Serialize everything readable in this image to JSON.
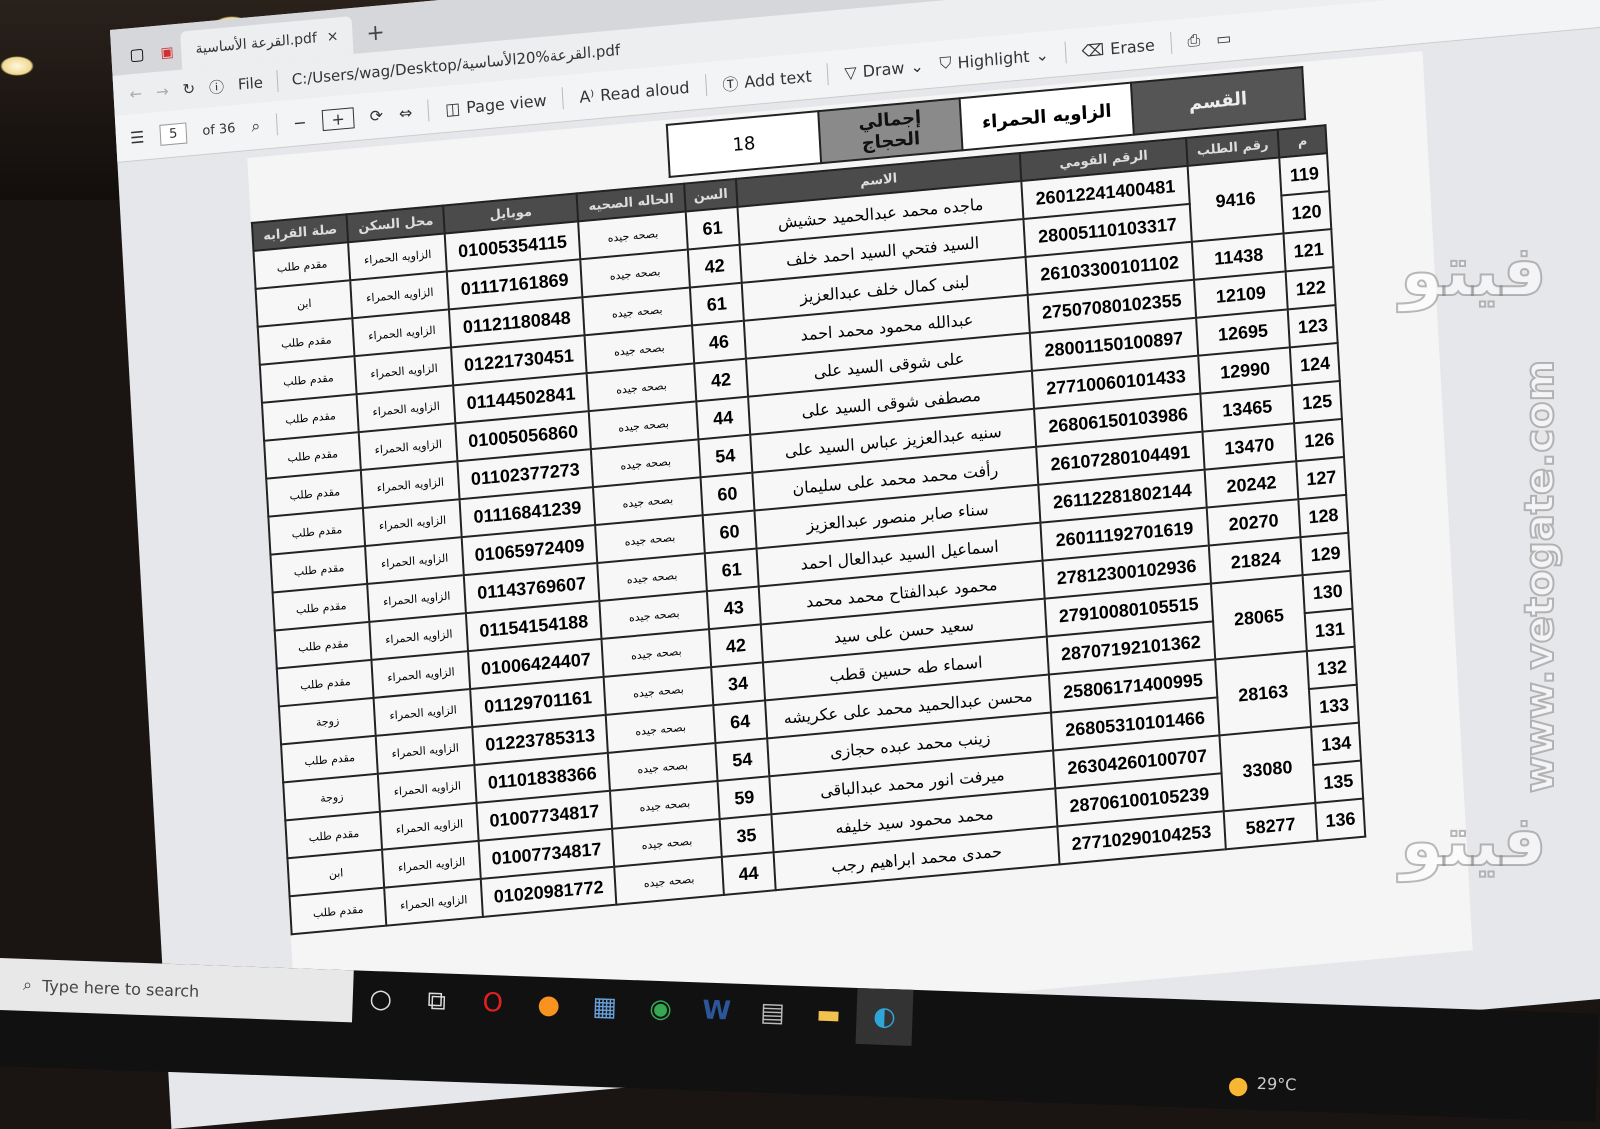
{
  "browser": {
    "tab_title": "القرعة الأساسية.pdf",
    "tab_close": "×",
    "new_tab": "+",
    "address_scheme": "File",
    "address_url": "C:/Users/wag/Desktop/القرعة%20الأساسية.pdf"
  },
  "pdf_toolbar": {
    "page_current": "5",
    "page_total": "of 36",
    "zoom_out": "−",
    "zoom_in": "+",
    "page_view": "Page view",
    "read_aloud": "Read aloud",
    "add_text": "Add text",
    "draw": "Draw",
    "highlight": "Highlight",
    "erase": "Erase"
  },
  "document": {
    "section_label": "القسم",
    "section_value": "الزاويه الحمراء",
    "total_label": "إجمالي الحجاج",
    "total_value": "18",
    "columns": [
      "م",
      "رقم الطلب",
      "الرقم القومي",
      "الاسم",
      "السن",
      "الحاله الصحيه",
      "موبايل",
      "محل السكن",
      "صلة القرابه"
    ],
    "rows": [
      {
        "no": "119",
        "req": "9416",
        "req_span": 2,
        "nid": "26012241400481",
        "name": "ماجده محمد عبدالحميد حشيش",
        "age": "61",
        "health": "بصحه جيده",
        "phone": "01005354115",
        "residence": "الزاويه الحمراء",
        "relation": "مقدم طلب"
      },
      {
        "no": "120",
        "nid": "28005110103317",
        "name": "السيد فتحي السيد احمد خلف",
        "age": "42",
        "health": "بصحه جيده",
        "phone": "01117161869",
        "residence": "الزاويه الحمراء",
        "relation": "ابن"
      },
      {
        "no": "121",
        "req": "11438",
        "req_span": 1,
        "nid": "26103300101102",
        "name": "لبنى كمال خلف عبدالعزيز",
        "age": "61",
        "health": "بصحه جيده",
        "phone": "01121180848",
        "residence": "الزاويه الحمراء",
        "relation": "مقدم طلب"
      },
      {
        "no": "122",
        "req": "12109",
        "req_span": 1,
        "nid": "27507080102355",
        "name": "عبدالله محمود محمد احمد",
        "age": "46",
        "health": "بصحه جيده",
        "phone": "01221730451",
        "residence": "الزاويه الحمراء",
        "relation": "مقدم طلب"
      },
      {
        "no": "123",
        "req": "12695",
        "req_span": 1,
        "nid": "28001150100897",
        "name": "على شوقى السيد على",
        "age": "42",
        "health": "بصحه جيده",
        "phone": "01144502841",
        "residence": "الزاويه الحمراء",
        "relation": "مقدم طلب"
      },
      {
        "no": "124",
        "req": "12990",
        "req_span": 1,
        "nid": "27710060101433",
        "name": "مصطفى شوقى السيد على",
        "age": "44",
        "health": "بصحه جيده",
        "phone": "01005056860",
        "residence": "الزاويه الحمراء",
        "relation": "مقدم طلب"
      },
      {
        "no": "125",
        "req": "13465",
        "req_span": 1,
        "nid": "26806150103986",
        "name": "سنيه عبدالعزيز عباس السيد على",
        "age": "54",
        "health": "بصحه جيده",
        "phone": "01102377273",
        "residence": "الزاويه الحمراء",
        "relation": "مقدم طلب"
      },
      {
        "no": "126",
        "req": "13470",
        "req_span": 1,
        "nid": "26107280104491",
        "name": "رأفت محمد محمد على سليمان",
        "age": "60",
        "health": "بصحه جيده",
        "phone": "01116841239",
        "residence": "الزاويه الحمراء",
        "relation": "مقدم طلب"
      },
      {
        "no": "127",
        "req": "20242",
        "req_span": 1,
        "nid": "26112281802144",
        "name": "سناء صابر منصور عبدالعزيز",
        "age": "60",
        "health": "بصحه جيده",
        "phone": "01065972409",
        "residence": "الزاويه الحمراء",
        "relation": "مقدم طلب"
      },
      {
        "no": "128",
        "req": "20270",
        "req_span": 1,
        "nid": "26011192701619",
        "name": "اسماعيل السيد عبدالعال احمد",
        "age": "61",
        "health": "بصحه جيده",
        "phone": "01143769607",
        "residence": "الزاويه الحمراء",
        "relation": "مقدم طلب"
      },
      {
        "no": "129",
        "req": "21824",
        "req_span": 1,
        "nid": "27812300102936",
        "name": "محمود عبدالفتاح محمد محمد",
        "age": "43",
        "health": "بصحه جيده",
        "phone": "01154154188",
        "residence": "الزاويه الحمراء",
        "relation": "مقدم طلب"
      },
      {
        "no": "130",
        "req": "28065",
        "req_span": 2,
        "nid": "27910080105515",
        "name": "سعيد حسن على سيد",
        "age": "42",
        "health": "بصحه جيده",
        "phone": "01006424407",
        "residence": "الزاويه الحمراء",
        "relation": "مقدم طلب"
      },
      {
        "no": "131",
        "nid": "28707192101362",
        "name": "اسماء طه حسين قطب",
        "age": "34",
        "health": "بصحه جيده",
        "phone": "01129701161",
        "residence": "الزاويه الحمراء",
        "relation": "زوجة"
      },
      {
        "no": "132",
        "req": "28163",
        "req_span": 2,
        "nid": "25806171400995",
        "name": "محسن عبدالحميد محمد على عكريشه",
        "age": "64",
        "health": "بصحه جيده",
        "phone": "01223785313",
        "residence": "الزاويه الحمراء",
        "relation": "مقدم طلب"
      },
      {
        "no": "133",
        "nid": "26805310101466",
        "name": "زينب محمد عبده حجازى",
        "age": "54",
        "health": "بصحه جيده",
        "phone": "01101838366",
        "residence": "الزاويه الحمراء",
        "relation": "زوجة"
      },
      {
        "no": "134",
        "req": "33080",
        "req_span": 2,
        "nid": "26304260100707",
        "name": "ميرفت انور محمد عبدالباقى",
        "age": "59",
        "health": "بصحه جيده",
        "phone": "01007734817",
        "residence": "الزاويه الحمراء",
        "relation": "مقدم طلب"
      },
      {
        "no": "135",
        "nid": "28706100105239",
        "name": "محمد محمود سيد خليفه",
        "age": "35",
        "health": "بصحه جيده",
        "phone": "01007734817",
        "residence": "الزاويه الحمراء",
        "relation": "ابن"
      },
      {
        "no": "136",
        "req": "58277",
        "req_span": 1,
        "nid": "27710290104253",
        "name": "حمدى محمد ابراهيم رجب",
        "age": "44",
        "health": "بصحه جيده",
        "phone": "01020981772",
        "residence": "الزاويه الحمراء",
        "relation": "مقدم طلب"
      }
    ]
  },
  "watermarks": {
    "site": "www.vetogate.com",
    "logo": "فيتو"
  },
  "taskbar": {
    "search_placeholder": "Type here to search",
    "weather": "29°C",
    "icons": [
      "cortana-icon",
      "task-view-icon",
      "opera-icon",
      "weather-app-icon",
      "calculator-icon",
      "chrome-icon",
      "word-icon",
      "notepad-icon",
      "file-explorer-icon",
      "edge-icon"
    ]
  },
  "colors": {
    "pdf_icon": "#d32f2f",
    "header_gray": "#4b4b4b"
  }
}
